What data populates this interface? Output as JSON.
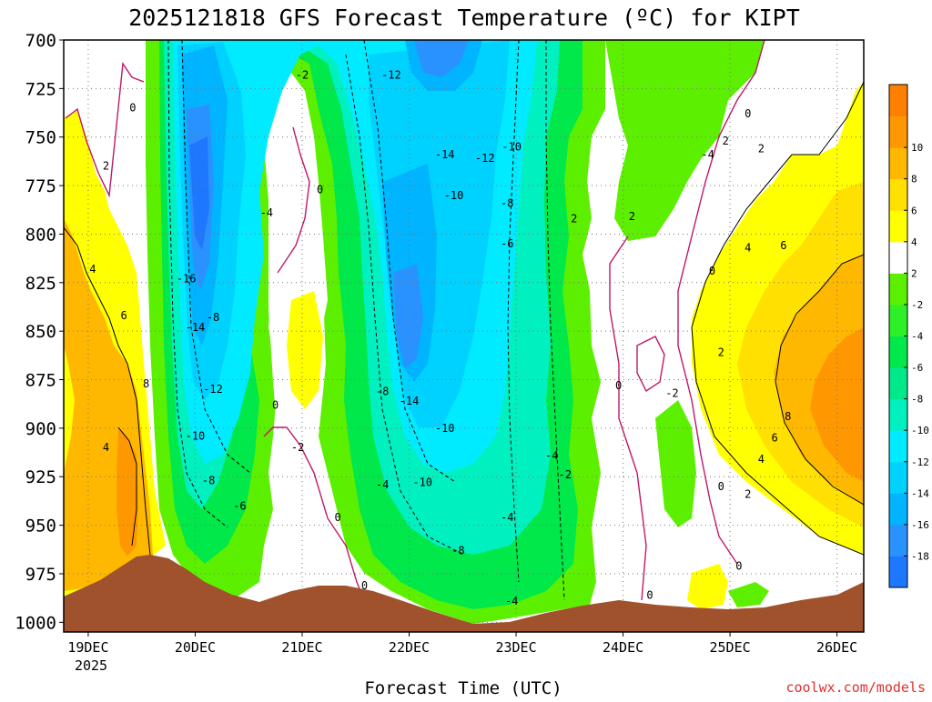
{
  "chart_data": {
    "type": "heatmap",
    "title": "2025121818 GFS Forecast Temperature (ºC) for KIPT",
    "xlabel": "Forecast Time (UTC)",
    "ylabel": "",
    "credit": "coolwx.com/models",
    "x_ticks": [
      "19DEC",
      "20DEC",
      "21DEC",
      "22DEC",
      "23DEC",
      "24DEC",
      "25DEC",
      "26DEC"
    ],
    "x_tick_hours": [
      0,
      24,
      48,
      72,
      96,
      120,
      144,
      168
    ],
    "x_year": "2025",
    "x_range_hours": [
      -5.5,
      174
    ],
    "pressure_ticks": [
      700,
      725,
      750,
      775,
      800,
      825,
      850,
      875,
      900,
      925,
      950,
      975,
      1000
    ],
    "ylim": [
      1005,
      700
    ],
    "colorbar": {
      "levels": [
        -20,
        -18,
        -16,
        -14,
        -12,
        -10,
        -8,
        -6,
        -4,
        -2,
        2,
        4,
        6,
        8,
        10,
        12
      ],
      "labels": [
        "-18",
        "-16",
        "-14",
        "-12",
        "-10",
        "-8",
        "-6",
        "-4",
        "-2",
        "2",
        "4",
        "6",
        "8",
        "10"
      ],
      "colors": [
        "#1e78ff",
        "#2a92ff",
        "#00b4ff",
        "#00d2ff",
        "#00ebff",
        "#00f0c0",
        "#00e88a",
        "#00e84a",
        "#2ef028",
        "#5cf000",
        "#ffffff",
        "#ffff00",
        "#ffe000",
        "#ffb800",
        "#ff9800",
        "#ff8000"
      ]
    },
    "contour_labels": [
      {
        "t": 10,
        "p": 735,
        "v": "0"
      },
      {
        "t": 4,
        "p": 765,
        "v": "2"
      },
      {
        "t": 1,
        "p": 818,
        "v": "4"
      },
      {
        "t": 8,
        "p": 842,
        "v": "6"
      },
      {
        "t": 13,
        "p": 877,
        "v": "8"
      },
      {
        "t": 4,
        "p": 910,
        "v": "4"
      },
      {
        "t": 48,
        "p": 718,
        "v": "-2"
      },
      {
        "t": 68,
        "p": 718,
        "v": "-12"
      },
      {
        "t": 40,
        "p": 789,
        "v": "-4"
      },
      {
        "t": 22,
        "p": 823,
        "v": "-16"
      },
      {
        "t": 24,
        "p": 848,
        "v": "-14"
      },
      {
        "t": 28,
        "p": 843,
        "v": "-8"
      },
      {
        "t": 28,
        "p": 880,
        "v": "-12"
      },
      {
        "t": 24,
        "p": 904,
        "v": "-10"
      },
      {
        "t": 27,
        "p": 927,
        "v": "-8"
      },
      {
        "t": 34,
        "p": 940,
        "v": "-6"
      },
      {
        "t": 42,
        "p": 888,
        "v": "0"
      },
      {
        "t": 47,
        "p": 910,
        "v": "-2"
      },
      {
        "t": 52,
        "p": 777,
        "v": "0"
      },
      {
        "t": 56,
        "p": 946,
        "v": "0"
      },
      {
        "t": 62,
        "p": 981,
        "v": "0"
      },
      {
        "t": 80,
        "p": 759,
        "v": "-14"
      },
      {
        "t": 82,
        "p": 780,
        "v": "-10"
      },
      {
        "t": 89,
        "p": 761,
        "v": "-12"
      },
      {
        "t": 95,
        "p": 755,
        "v": "-10"
      },
      {
        "t": 94,
        "p": 784,
        "v": "-8"
      },
      {
        "t": 94,
        "p": 805,
        "v": "-6"
      },
      {
        "t": 75,
        "p": 928,
        "v": "-10"
      },
      {
        "t": 80,
        "p": 900,
        "v": "-10"
      },
      {
        "t": 72,
        "p": 886,
        "v": "-14"
      },
      {
        "t": 66,
        "p": 881,
        "v": "-8"
      },
      {
        "t": 66,
        "p": 929,
        "v": "-4"
      },
      {
        "t": 94,
        "p": 946,
        "v": "-4"
      },
      {
        "t": 83,
        "p": 963,
        "v": "-8"
      },
      {
        "t": 104,
        "p": 914,
        "v": "-4"
      },
      {
        "t": 107,
        "p": 924,
        "v": "-2"
      },
      {
        "t": 95,
        "p": 989,
        "v": "-4"
      },
      {
        "t": 109,
        "p": 792,
        "v": "2"
      },
      {
        "t": 122,
        "p": 791,
        "v": "2"
      },
      {
        "t": 119,
        "p": 878,
        "v": "0"
      },
      {
        "t": 131,
        "p": 882,
        "v": "-2"
      },
      {
        "t": 139,
        "p": 759,
        "v": "-4"
      },
      {
        "t": 143,
        "p": 752,
        "v": "2"
      },
      {
        "t": 148,
        "p": 738,
        "v": "0"
      },
      {
        "t": 151,
        "p": 756,
        "v": "2"
      },
      {
        "t": 140,
        "p": 819,
        "v": "0"
      },
      {
        "t": 142,
        "p": 861,
        "v": "2"
      },
      {
        "t": 148,
        "p": 807,
        "v": "4"
      },
      {
        "t": 156,
        "p": 806,
        "v": "6"
      },
      {
        "t": 157,
        "p": 894,
        "v": "8"
      },
      {
        "t": 154,
        "p": 905,
        "v": "6"
      },
      {
        "t": 151,
        "p": 916,
        "v": "4"
      },
      {
        "t": 148,
        "p": 934,
        "v": "2"
      },
      {
        "t": 142,
        "p": 930,
        "v": "0"
      },
      {
        "t": 146,
        "p": 971,
        "v": "0"
      },
      {
        "t": 126,
        "p": 986,
        "v": "0"
      }
    ]
  }
}
